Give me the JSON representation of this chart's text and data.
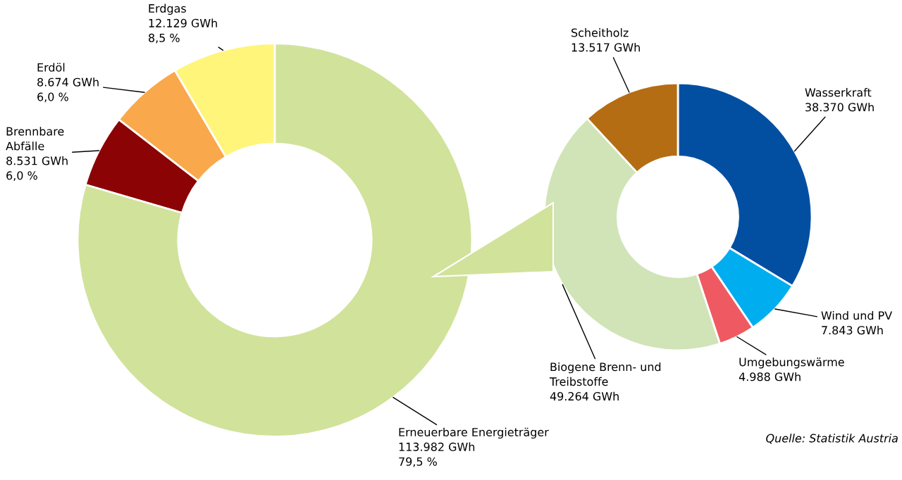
{
  "chart_data": [
    {
      "type": "donut",
      "categories": [
        "Erdgas",
        "Erdöl",
        "Brennbare\nAbfälle",
        "Erneuerbare Energieträger"
      ],
      "values": [
        12129,
        8674,
        8531,
        113982
      ],
      "colors": [
        "#fff57a",
        "#f9a84c",
        "#8b0304",
        "#d1e29b"
      ],
      "value_labels": [
        "12.129 GWh\n8,5 %",
        "8.674 GWh\n6,0 %",
        "8.531 GWh\n6,0 %",
        "113.982 GWh\n79,5 %"
      ]
    },
    {
      "type": "donut",
      "categories": [
        "Wasserkraft",
        "Wind und PV",
        "Umgebungswärme",
        "Biogene Brenn- und\nTreibstoffe",
        "Scheitholz"
      ],
      "values": [
        38370,
        7843,
        4988,
        49264,
        13517
      ],
      "colors": [
        "#024fa2",
        "#00aeef",
        "#ef5a62",
        "#d0e4b8",
        "#b56d14"
      ],
      "value_labels": [
        "38.370 GWh",
        "7.843 GWh",
        "4.988 GWh",
        "49.264 GWh",
        "13.517 GWh"
      ],
      "annotations": [
        "Quelle: Statistik Austria"
      ]
    }
  ]
}
